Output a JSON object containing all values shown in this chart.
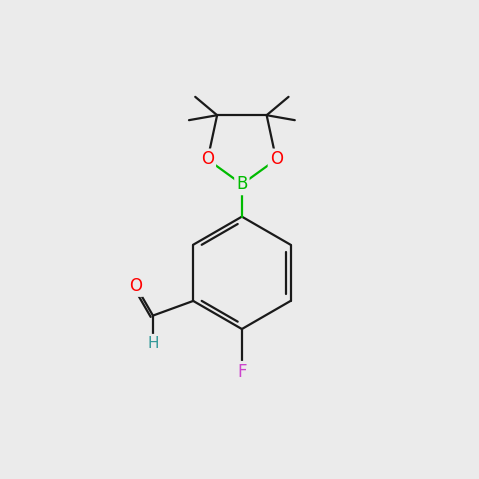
{
  "background_color": "#ebebeb",
  "bond_color": "#1a1a1a",
  "bond_width": 1.6,
  "atom_colors": {
    "O": "#ff0000",
    "B": "#00bb00",
    "F": "#cc44cc",
    "H": "#339999",
    "C": "#1a1a1a"
  },
  "font_size_atom": 12,
  "figsize": [
    4.79,
    4.79
  ],
  "dpi": 100
}
